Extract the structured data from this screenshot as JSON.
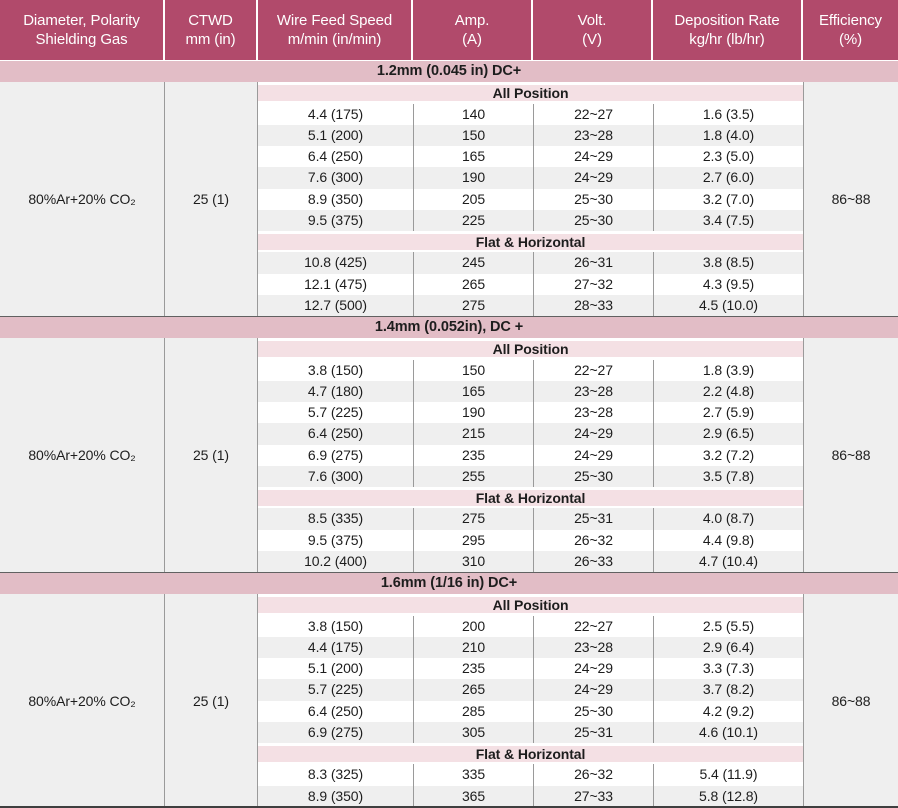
{
  "table": {
    "colors": {
      "header_bg": "#b14a6b",
      "header_text": "#ffffff",
      "section_band_bg": "#e2bdc6",
      "position_band_bg": "#f4e0e4",
      "stripe_gray": "#efefef",
      "divider_line": "#9a9a9a"
    },
    "columns": [
      {
        "line1": "Diameter, Polarity",
        "line2": "Shielding Gas"
      },
      {
        "line1": "CTWD",
        "line2": "mm (in)"
      },
      {
        "line1": "Wire Feed Speed",
        "line2": "m/min (in/min)"
      },
      {
        "line1": "Amp.",
        "line2": "(A)"
      },
      {
        "line1": "Volt.",
        "line2": "(V)"
      },
      {
        "line1": "Deposition Rate",
        "line2": "kg/hr (lb/hr)"
      },
      {
        "line1": "Efficiency",
        "line2": "(%)"
      }
    ],
    "sections": [
      {
        "title": "1.2mm (0.045 in) DC+",
        "shielding_gas": "80%Ar+20% CO₂",
        "ctwd": "25 (1)",
        "efficiency": "86~88",
        "groups": [
          {
            "label": "All Position",
            "stripe_start": "white",
            "rows": [
              [
                "4.4 (175)",
                "140",
                "22~27",
                "1.6 (3.5)"
              ],
              [
                "5.1 (200)",
                "150",
                "23~28",
                "1.8 (4.0)"
              ],
              [
                "6.4 (250)",
                "165",
                "24~29",
                "2.3 (5.0)"
              ],
              [
                "7.6 (300)",
                "190",
                "24~29",
                "2.7 (6.0)"
              ],
              [
                "8.9 (350)",
                "205",
                "25~30",
                "3.2 (7.0)"
              ],
              [
                "9.5 (375)",
                "225",
                "25~30",
                "3.4 (7.5)"
              ]
            ]
          },
          {
            "label": "Flat & Horizontal",
            "stripe_start": "gray",
            "rows": [
              [
                "10.8 (425)",
                "245",
                "26~31",
                "3.8 (8.5)"
              ],
              [
                "12.1 (475)",
                "265",
                "27~32",
                "4.3 (9.5)"
              ],
              [
                "12.7 (500)",
                "275",
                "28~33",
                "4.5 (10.0)"
              ]
            ]
          }
        ]
      },
      {
        "title": "1.4mm (0.052in), DC +",
        "shielding_gas": "80%Ar+20% CO₂",
        "ctwd": "25 (1)",
        "efficiency": "86~88",
        "groups": [
          {
            "label": "All Position",
            "stripe_start": "white",
            "rows": [
              [
                "3.8 (150)",
                "150",
                "22~27",
                "1.8 (3.9)"
              ],
              [
                "4.7 (180)",
                "165",
                "23~28",
                "2.2 (4.8)"
              ],
              [
                "5.7 (225)",
                "190",
                "23~28",
                "2.7 (5.9)"
              ],
              [
                "6.4 (250)",
                "215",
                "24~29",
                "2.9 (6.5)"
              ],
              [
                "6.9 (275)",
                "235",
                "24~29",
                "3.2 (7.2)"
              ],
              [
                "7.6 (300)",
                "255",
                "25~30",
                "3.5 (7.8)"
              ]
            ]
          },
          {
            "label": "Flat & Horizontal",
            "stripe_start": "gray",
            "rows": [
              [
                "8.5 (335)",
                "275",
                "25~31",
                "4.0 (8.7)"
              ],
              [
                "9.5 (375)",
                "295",
                "26~32",
                "4.4 (9.8)"
              ],
              [
                "10.2 (400)",
                "310",
                "26~33",
                "4.7 (10.4)"
              ]
            ]
          }
        ]
      },
      {
        "title": "1.6mm (1/16 in) DC+",
        "shielding_gas": "80%Ar+20% CO₂",
        "ctwd": "25 (1)",
        "efficiency": "86~88",
        "groups": [
          {
            "label": "All Position",
            "stripe_start": "white",
            "rows": [
              [
                "3.8 (150)",
                "200",
                "22~27",
                "2.5 (5.5)"
              ],
              [
                "4.4 (175)",
                "210",
                "23~28",
                "2.9 (6.4)"
              ],
              [
                "5.1 (200)",
                "235",
                "24~29",
                "3.3 (7.3)"
              ],
              [
                "5.7 (225)",
                "265",
                "24~29",
                "3.7 (8.2)"
              ],
              [
                "6.4 (250)",
                "285",
                "25~30",
                "4.2 (9.2)"
              ],
              [
                "6.9 (275)",
                "305",
                "25~31",
                "4.6 (10.1)"
              ]
            ]
          },
          {
            "label": "Flat & Horizontal",
            "stripe_start": "white",
            "rows": [
              [
                "8.3 (325)",
                "335",
                "26~32",
                "5.4 (11.9)"
              ],
              [
                "8.9 (350)",
                "365",
                "27~33",
                "5.8 (12.8)"
              ]
            ]
          }
        ]
      }
    ]
  }
}
